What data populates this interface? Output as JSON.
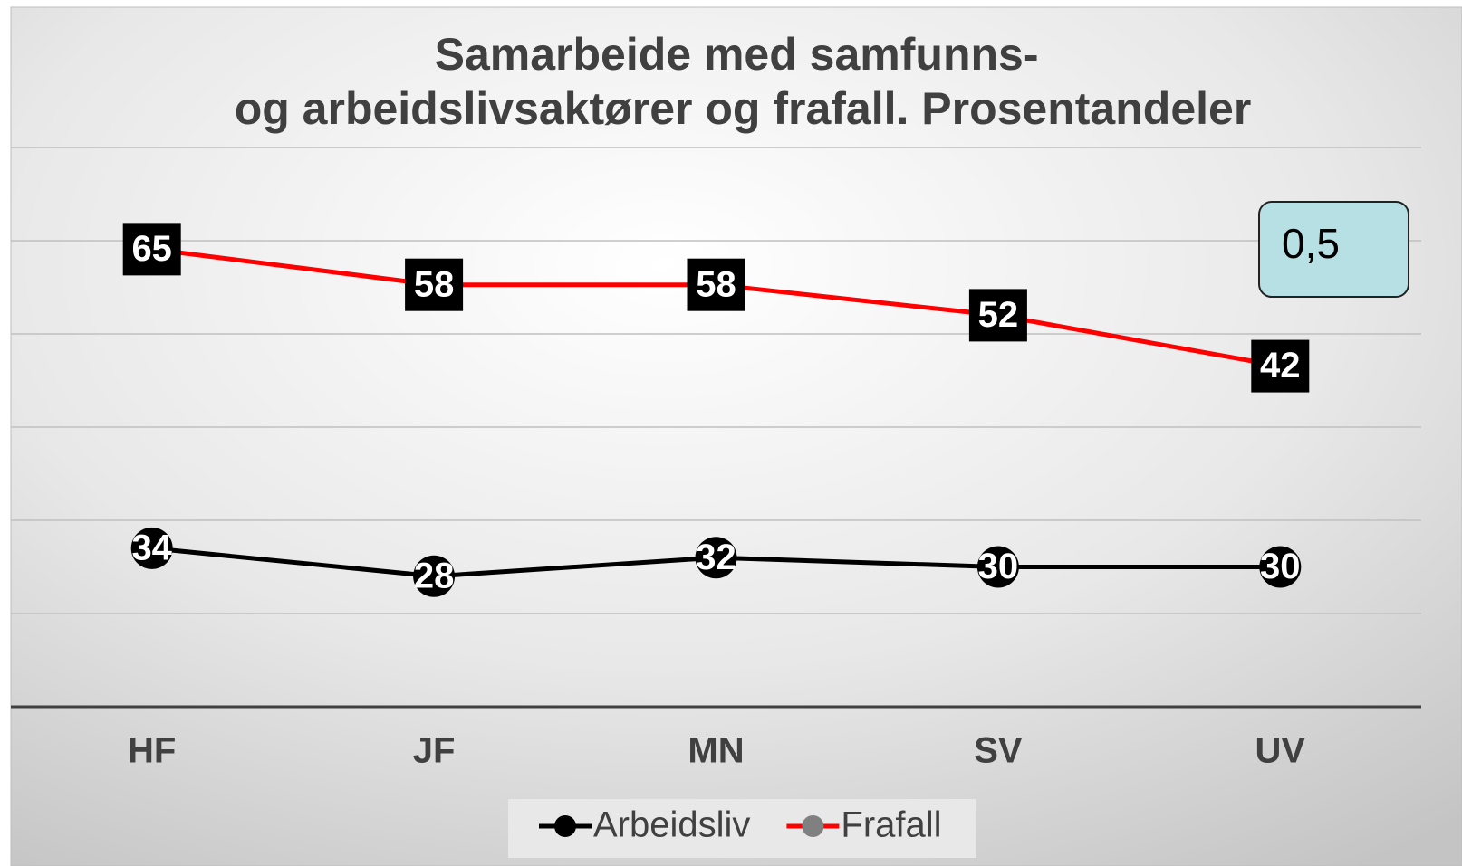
{
  "chart_data": {
    "type": "line",
    "title": "Samarbeide med samfunns- og arbeidslivsaktører og frafall. Prosentandeler",
    "categories": [
      "HF",
      "JF",
      "MN",
      "SV",
      "UV"
    ],
    "series": [
      {
        "name": "Arbeidsliv",
        "color": "#000000",
        "values": [
          34,
          28,
          32,
          30,
          30
        ]
      },
      {
        "name": "Frafall",
        "color": "#ff0000",
        "axis": "y2",
        "values": [
          65,
          58,
          58,
          52,
          42
        ]
      }
    ],
    "ylim": [
      0,
      120
    ],
    "yticks": [
      0,
      20,
      40,
      60,
      80,
      100,
      120
    ],
    "y2lim": [
      -25,
      85
    ],
    "grid": true,
    "legend": "bottom",
    "annotations": [
      "0,5"
    ]
  }
}
